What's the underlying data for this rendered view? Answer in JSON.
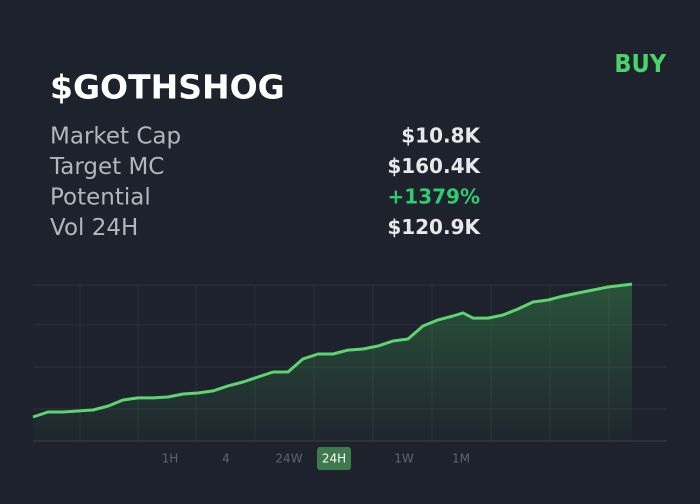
{
  "header": {
    "title": "$GOTHSHOG",
    "action": "BUY"
  },
  "stats": {
    "rows": [
      {
        "label": "Market Cap",
        "value": "$10.8K"
      },
      {
        "label": "Target MC",
        "value": "$160.4K"
      },
      {
        "label": "Potential",
        "value": "+1379%",
        "highlight": true
      },
      {
        "label": "Vol 24H",
        "value": "$120.9K"
      }
    ]
  },
  "chart_data": {
    "type": "area",
    "color": "#5fd36e",
    "grid": true,
    "xlim": [
      0,
      634
    ],
    "ylim": [
      0,
      100
    ],
    "xticks": [
      47,
      105,
      163,
      222,
      281,
      340,
      399,
      458,
      517,
      576
    ],
    "yticks": [
      0,
      20.5,
      47.4,
      74.4,
      100
    ],
    "x": [
      0,
      15,
      30,
      45,
      60,
      75,
      90,
      105,
      120,
      135,
      150,
      165,
      180,
      195,
      210,
      225,
      240,
      255,
      270,
      285,
      300,
      315,
      330,
      345,
      360,
      375,
      390,
      405,
      420,
      430,
      440,
      455,
      470,
      485,
      500,
      515,
      530,
      545,
      560,
      575,
      599
    ],
    "values": [
      15.4,
      18.6,
      18.6,
      19.2,
      19.9,
      22.4,
      26.3,
      27.6,
      27.6,
      28.2,
      30.1,
      30.8,
      32.1,
      35.3,
      37.8,
      41.0,
      44.2,
      44.2,
      52.6,
      55.8,
      55.8,
      58.3,
      59.0,
      60.9,
      64.1,
      65.4,
      73.7,
      77.6,
      80.1,
      82.1,
      78.8,
      78.8,
      80.8,
      84.6,
      89.1,
      90.4,
      92.9,
      94.9,
      96.8,
      98.7,
      100.6
    ]
  },
  "timeframes": {
    "options": [
      "1H",
      "4",
      "24W",
      "24H",
      "1W",
      "1M"
    ],
    "active": 3
  }
}
